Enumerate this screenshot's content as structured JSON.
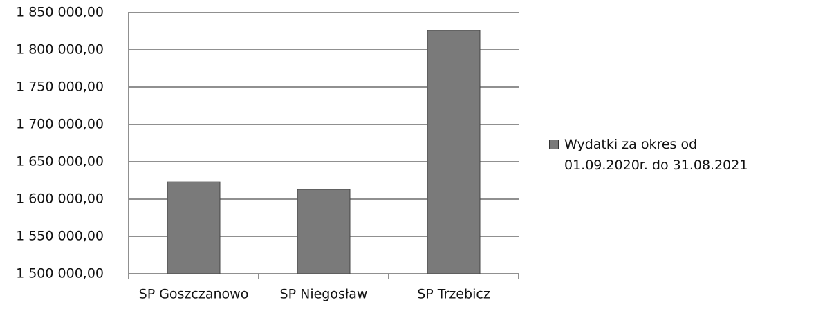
{
  "chart_data": {
    "type": "bar",
    "categories": [
      "SP Goszczanowo",
      "SP Niegosław",
      "SP Trzebicz"
    ],
    "series": [
      {
        "name": "Wydatki za okres od 01.09.2020r. do 31.08.2021",
        "color": "#7a7a7a",
        "values": [
          1623000,
          1613000,
          1826000
        ]
      }
    ],
    "ylim": [
      1500000,
      1850000
    ],
    "yticks": [
      {
        "value": 1500000,
        "label": "1 500 000,00"
      },
      {
        "value": 1550000,
        "label": "1 550 000,00"
      },
      {
        "value": 1600000,
        "label": "1 600 000,00"
      },
      {
        "value": 1650000,
        "label": "1 650 000,00"
      },
      {
        "value": 1700000,
        "label": "1 700 000,00"
      },
      {
        "value": 1750000,
        "label": "1 750 000,00"
      },
      {
        "value": 1800000,
        "label": "1 800 000,00"
      },
      {
        "value": 1850000,
        "label": "1 850 000,00"
      }
    ],
    "grid": true,
    "legend": "right"
  }
}
